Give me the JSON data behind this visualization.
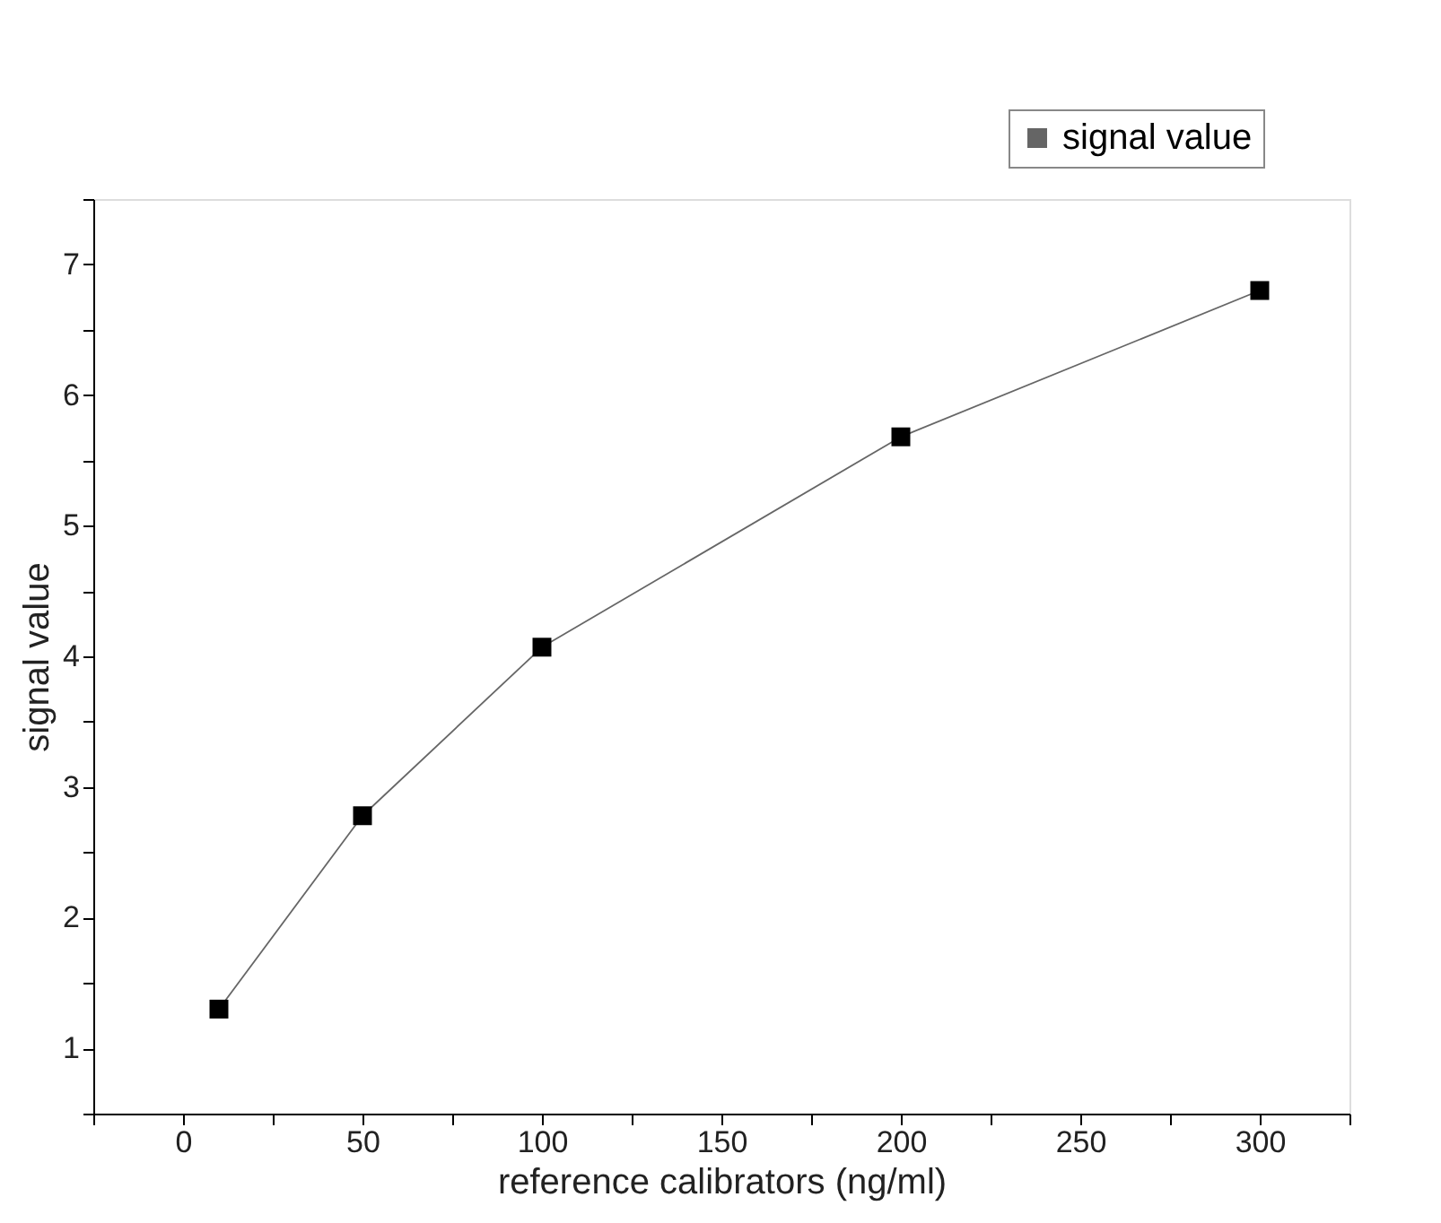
{
  "chart_data": {
    "type": "line",
    "xlabel": "reference calibrators (ng/ml)",
    "ylabel": "signal value",
    "x": [
      10,
      50,
      100,
      200,
      300
    ],
    "series": [
      {
        "name": "signal value",
        "color": "#000000",
        "values": [
          1.3,
          2.78,
          4.07,
          5.68,
          6.8
        ]
      }
    ],
    "xlim": [
      -25,
      325
    ],
    "xticks": [
      {
        "value": -25,
        "label": null
      },
      0,
      {
        "value": 25,
        "label": null
      },
      50,
      {
        "value": 75,
        "label": null
      },
      100,
      {
        "value": 125,
        "label": null
      },
      150,
      {
        "value": 175,
        "label": null
      },
      200,
      {
        "value": 225,
        "label": null
      },
      250,
      {
        "value": 275,
        "label": null
      },
      300,
      {
        "value": 325,
        "label": null
      }
    ],
    "ylim": [
      0.5,
      7.5
    ],
    "yticks": [
      {
        "value": 0.5,
        "label": null
      },
      1,
      {
        "value": 1.5,
        "label": null
      },
      2,
      {
        "value": 2.5,
        "label": null
      },
      3,
      {
        "value": 3.5,
        "label": null
      },
      4,
      {
        "value": 4.5,
        "label": null
      },
      5,
      {
        "value": 5.5,
        "label": null
      },
      6,
      {
        "value": 6.5,
        "label": null
      },
      7,
      {
        "value": 7.5,
        "label": null
      }
    ],
    "marker": "square",
    "line_style": "solid",
    "grid": false,
    "legend": "top right"
  }
}
